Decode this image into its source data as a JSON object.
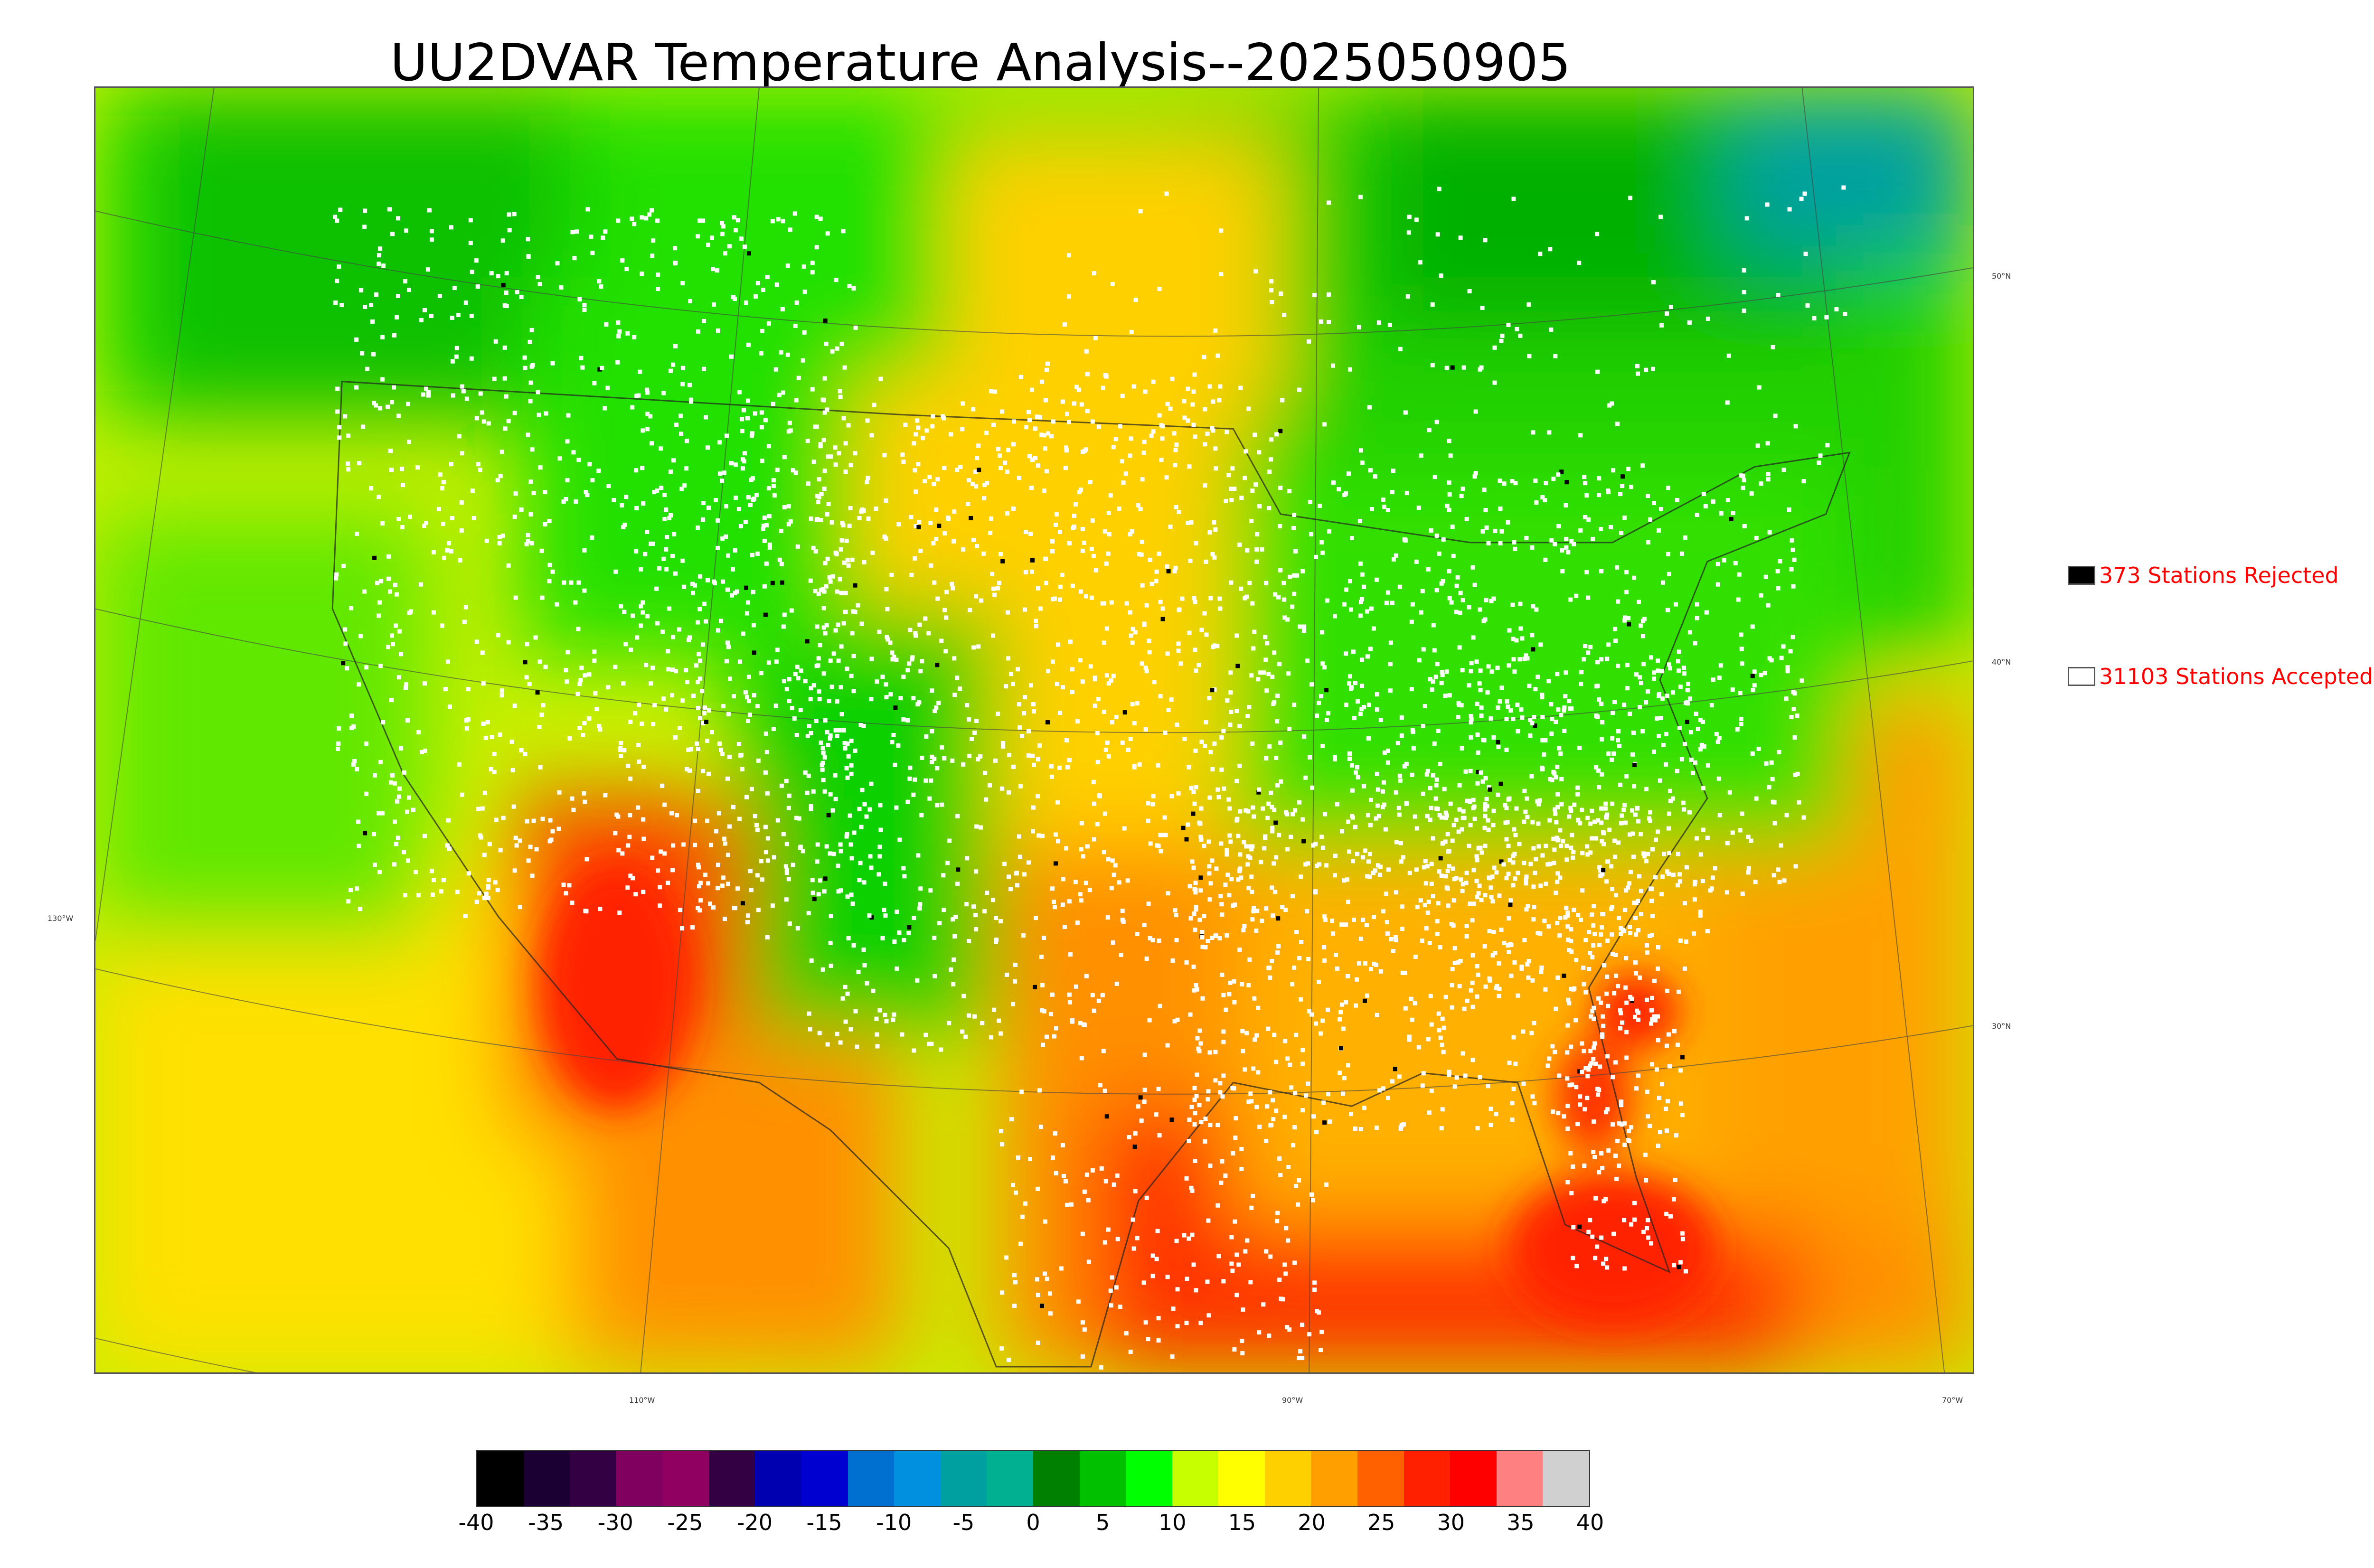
{
  "title": "UU2DVAR Temperature Analysis--2025050905",
  "legend": {
    "rejected": {
      "label": "373 Stations Rejected",
      "color": "#000000"
    },
    "accepted": {
      "label": "31103 Stations Accepted",
      "color": "#ffffff"
    }
  },
  "lat_labels": [
    "50°N",
    "40°N",
    "30°N"
  ],
  "lon_labels": [
    "130°W",
    "110°W",
    "90°W",
    "70°W"
  ],
  "colorbar": {
    "ticks": [
      "-40",
      "-35",
      "-30",
      "-25",
      "-20",
      "-15",
      "-10",
      "-5",
      "0",
      "5",
      "10",
      "15",
      "20",
      "25",
      "30",
      "35",
      "40"
    ],
    "colors": [
      "#000000",
      "#1a0033",
      "#330044",
      "#800060",
      "#8f0060",
      "#330044",
      "#0000b0",
      "#0000d0",
      "#0070d0",
      "#0090e0",
      "#00a0a0",
      "#00b090",
      "#008000",
      "#00c000",
      "#00ff00",
      "#c8ff00",
      "#ffff00",
      "#ffd000",
      "#ffa000",
      "#ff6000",
      "#ff2000",
      "#ff0000",
      "#ff8080",
      "#d0d0d0"
    ]
  },
  "colors": {
    "cool_green": "#00b000",
    "green": "#20f000",
    "yellow_green": "#c8f000",
    "yellow": "#ffe000",
    "orange": "#ffa000",
    "red": "#ff3000",
    "teal": "#00a0a0",
    "station_accepted": "#ffffff",
    "station_rejected": "#000000"
  }
}
